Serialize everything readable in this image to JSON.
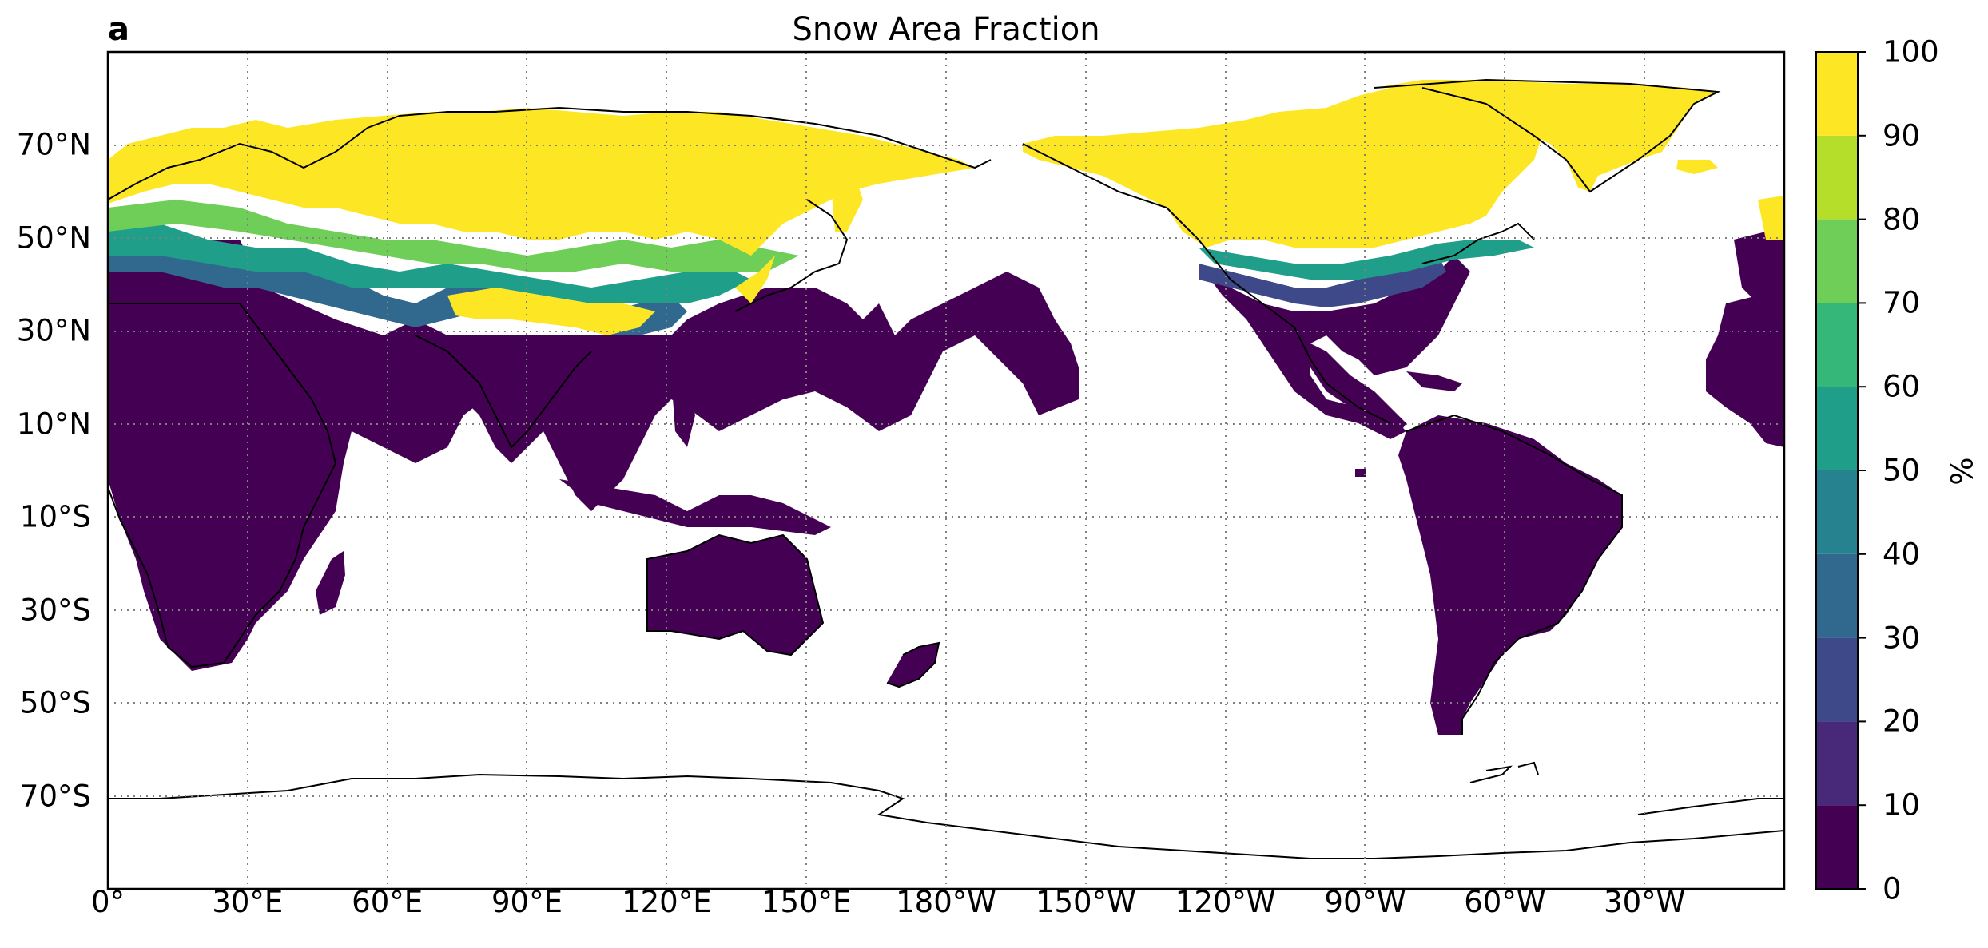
{
  "figure": {
    "panel_label": "a",
    "title": "Snow Area Fraction",
    "colorbar_unit": "%"
  },
  "chart_data": {
    "type": "filled-contour map",
    "projection": "PlateCarree, central longitude 180 (0° at left edge)",
    "variable": "Snow Area Fraction",
    "title": "Snow Area Fraction",
    "panel": "a",
    "lat_ticks": [
      "70°N",
      "50°N",
      "30°N",
      "10°N",
      "10°S",
      "30°S",
      "50°S",
      "70°S"
    ],
    "lon_ticks": [
      "0°",
      "30°E",
      "60°E",
      "90°E",
      "120°E",
      "150°E",
      "180°W",
      "150°W",
      "120°W",
      "90°W",
      "60°W",
      "30°W"
    ],
    "colorbar": {
      "label": "%",
      "ticks": [
        "0",
        "10",
        "20",
        "30",
        "40",
        "50",
        "60",
        "70",
        "80",
        "90",
        "100"
      ],
      "bins": [
        {
          "range": [
            0,
            10
          ],
          "color": "#440154"
        },
        {
          "range": [
            10,
            20
          ],
          "color": "#482878"
        },
        {
          "range": [
            20,
            30
          ],
          "color": "#3e4989"
        },
        {
          "range": [
            30,
            40
          ],
          "color": "#31688e"
        },
        {
          "range": [
            40,
            50
          ],
          "color": "#26828e"
        },
        {
          "range": [
            50,
            60
          ],
          "color": "#1f9e89"
        },
        {
          "range": [
            60,
            70
          ],
          "color": "#35b779"
        },
        {
          "range": [
            70,
            80
          ],
          "color": "#6ece58"
        },
        {
          "range": [
            80,
            90
          ],
          "color": "#b5de2b"
        },
        {
          "range": [
            90,
            100
          ],
          "color": "#fde725"
        }
      ]
    },
    "grid": "dotted gray, every 20° latitude and 30° longitude",
    "coastlines": true
  }
}
